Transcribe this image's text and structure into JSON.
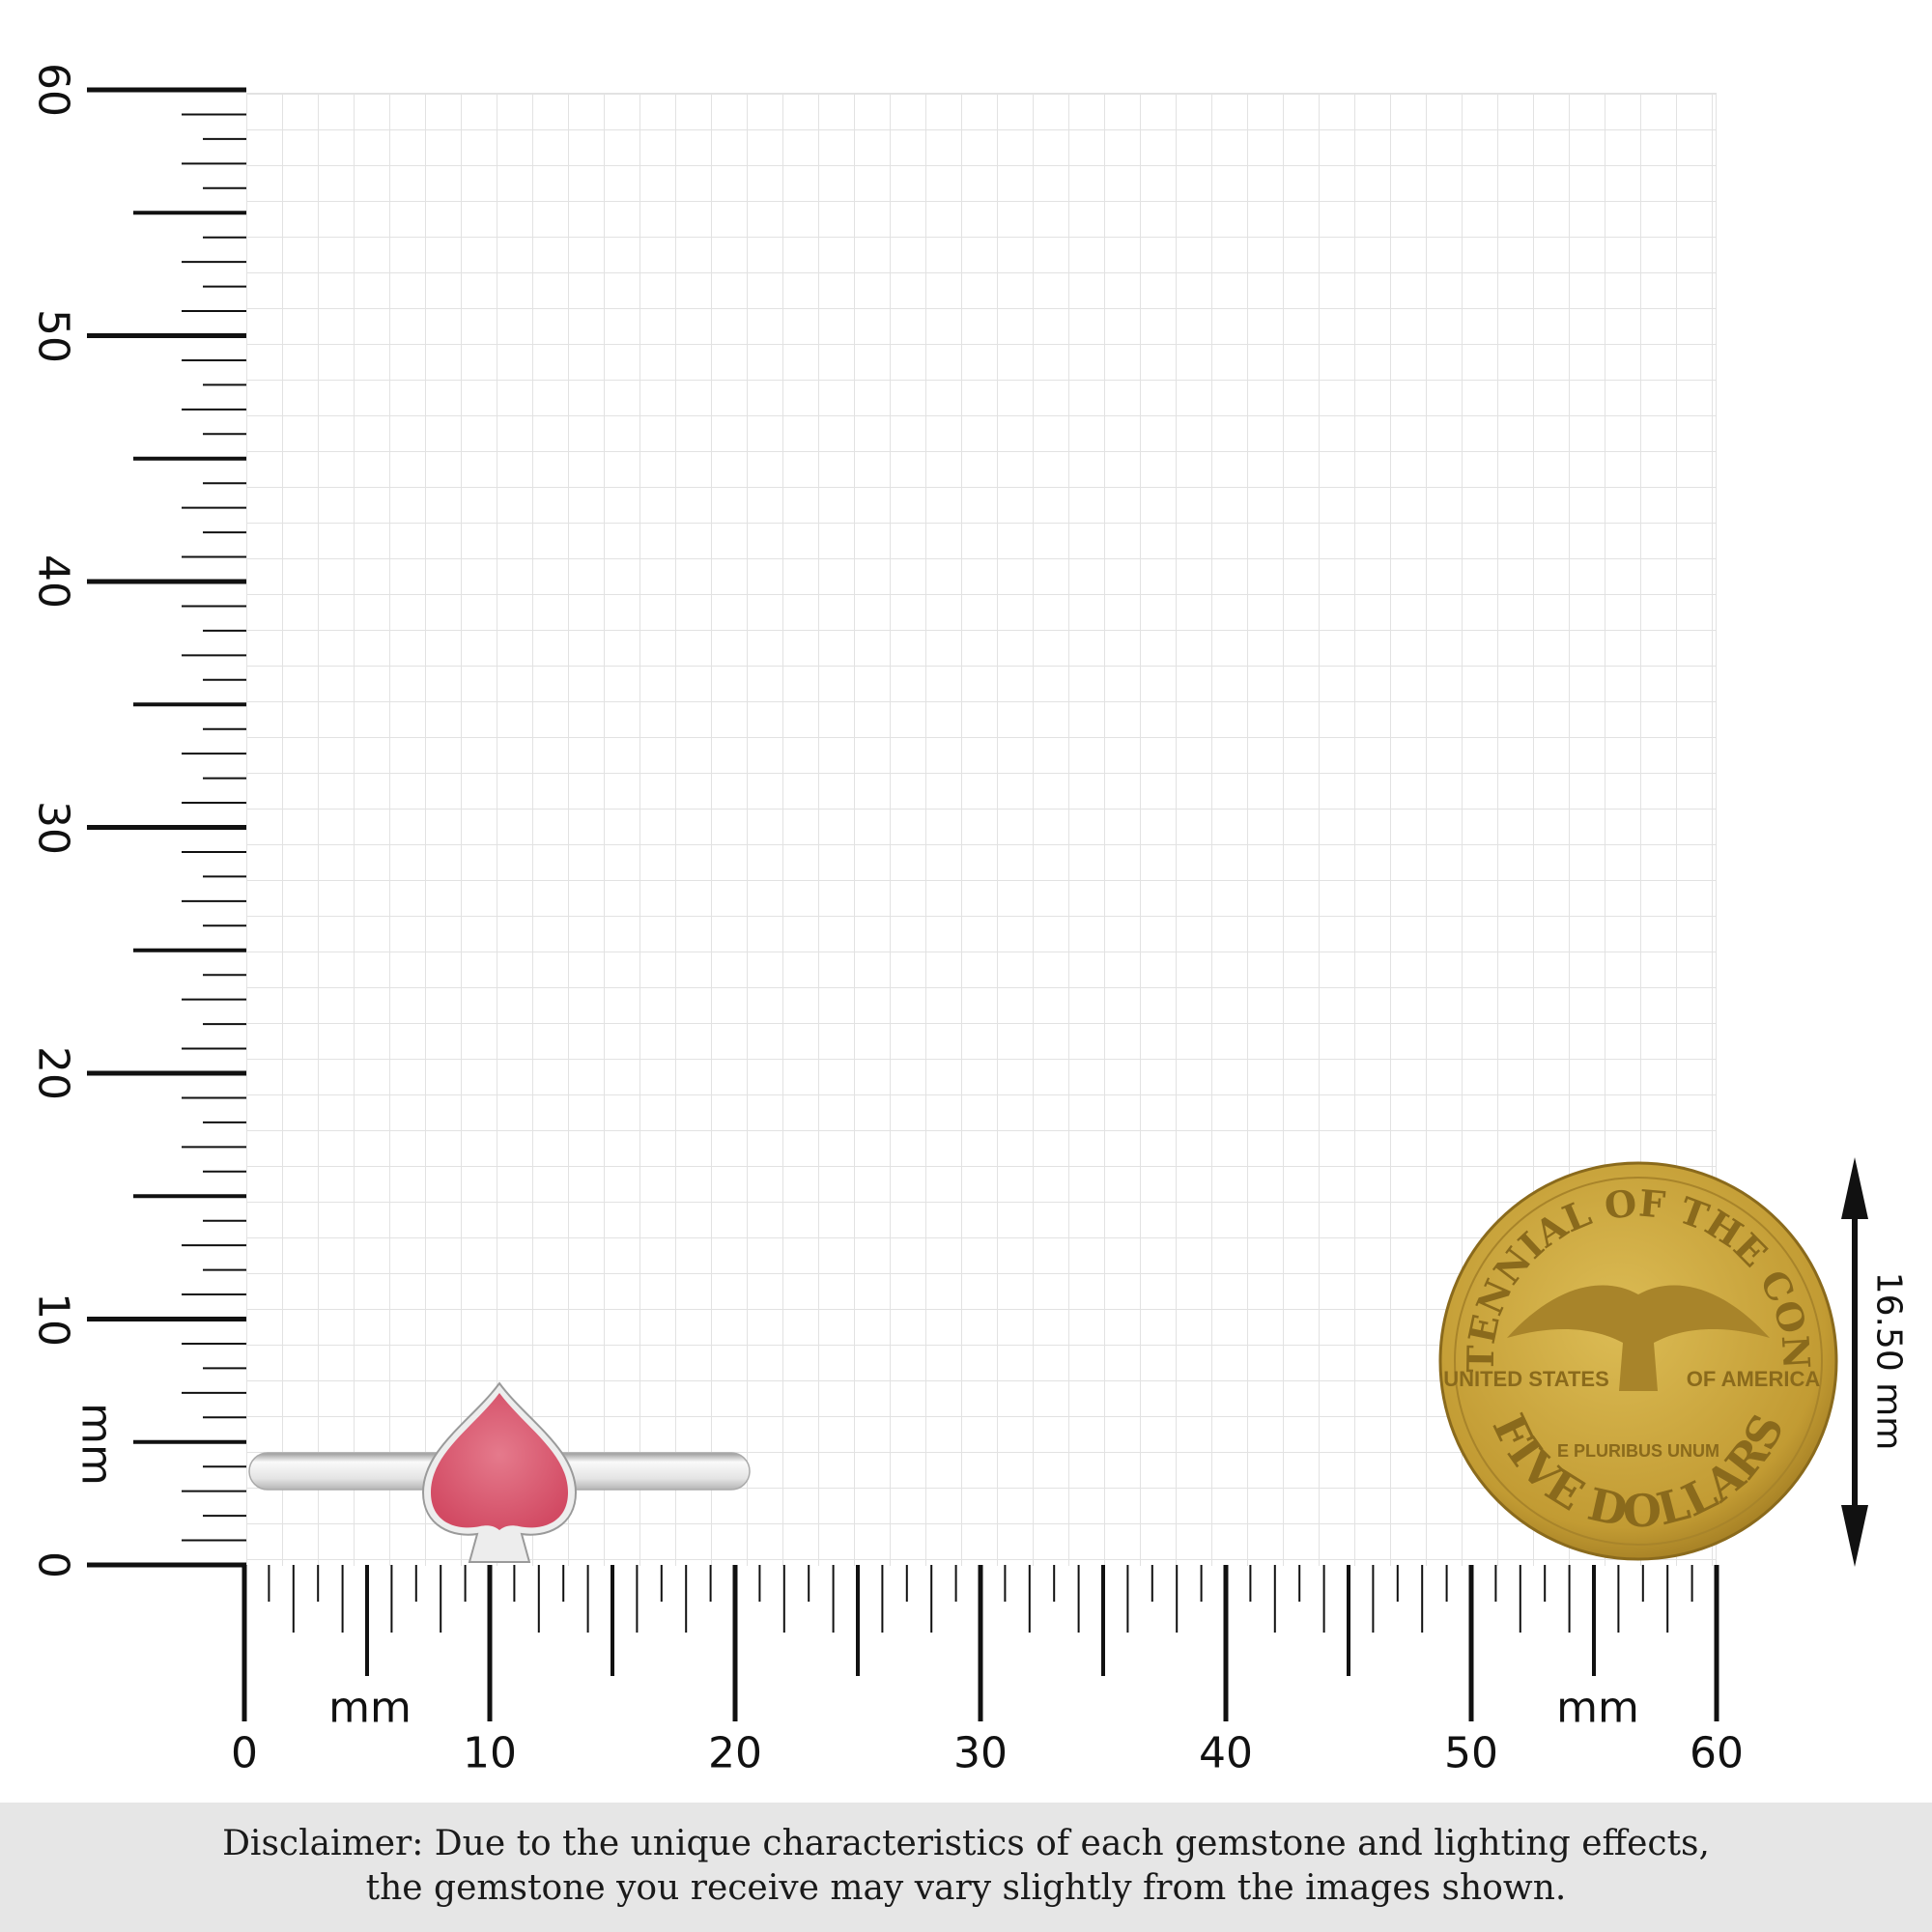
{
  "scale": {
    "unit_label": "mm",
    "vertical_labels": [
      "0",
      "10",
      "20",
      "30",
      "40",
      "50",
      "60"
    ],
    "horizontal_labels": [
      "0",
      "10",
      "20",
      "30",
      "40",
      "50",
      "60"
    ],
    "range_mm": [
      0,
      60
    ]
  },
  "product": {
    "type": "spade-shaped gemstone ring",
    "stone_color": "#d9536e",
    "metal_color": "#e8e8e8"
  },
  "coin": {
    "top_text": "BICENTENNIAL OF THE CONGRESS",
    "left_text": "UNITED STATES",
    "right_text": "OF AMERICA",
    "motto": "E PLURIBUS UNUM",
    "bottom_text": "FIVE DOLLARS",
    "color": "#c9a53a"
  },
  "coin_dimension": "16.50 mm",
  "disclaimer": {
    "line1": "Disclaimer: Due to the unique characteristics of each gemstone and lighting effects,",
    "line2": "the gemstone you receive may vary slightly from the images shown."
  }
}
